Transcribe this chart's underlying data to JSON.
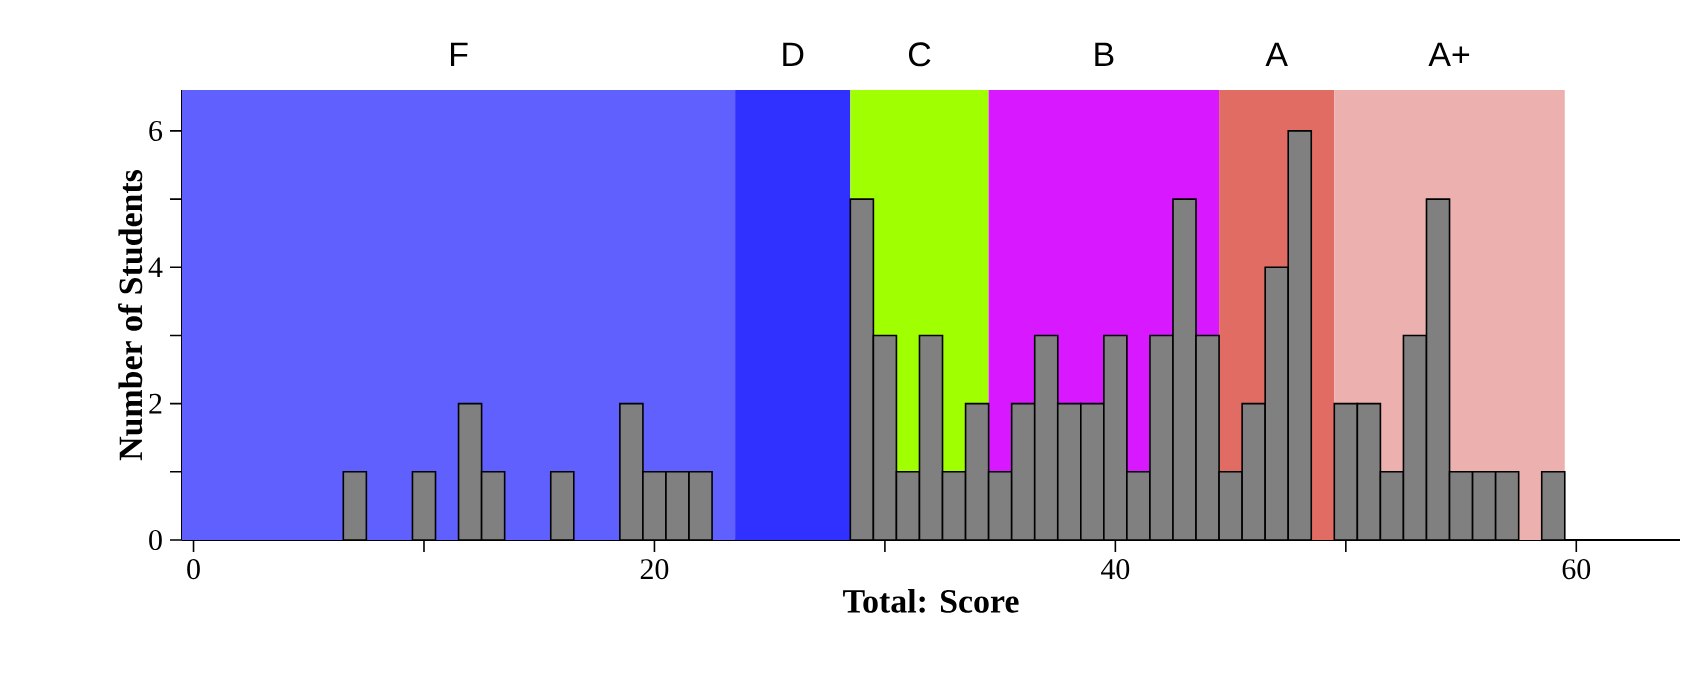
{
  "chart_data": {
    "type": "histogram",
    "xlabel": "Total: Score",
    "ylabel": "Number of Students",
    "color": "#808080",
    "bins": [
      -0.5,
      0.5,
      1.5,
      2.5,
      3.5,
      4.5,
      5.5,
      6.5,
      7.5,
      8.5,
      9.5,
      10.5,
      11.5,
      12.5,
      13.5,
      14.5,
      15.5,
      16.5,
      17.5,
      18.5,
      19.5,
      20.5,
      21.5,
      22.5,
      23.5,
      24.5,
      25.5,
      26.5,
      27.5,
      28.5,
      29.5,
      30.5,
      31.5,
      32.5,
      33.5,
      34.5,
      35.5,
      36.5,
      37.5,
      38.5,
      39.5,
      40.5,
      41.5,
      42.5,
      43.5,
      44.5,
      45.5,
      46.5,
      47.5,
      48.5,
      49.5,
      50.5,
      51.5,
      52.5,
      53.5,
      54.5,
      55.5,
      56.5,
      57.5,
      58.5,
      59.5
    ],
    "values": [
      0,
      0,
      0,
      0,
      0,
      0,
      0,
      1,
      0,
      0,
      1,
      0,
      2,
      1,
      0,
      0,
      1,
      0,
      0,
      2,
      1,
      1,
      1,
      0,
      0,
      0,
      0,
      0,
      0,
      5,
      3,
      1,
      3,
      1,
      2,
      1,
      2,
      3,
      2,
      2,
      3,
      1,
      3,
      5,
      3,
      1,
      2,
      4,
      6,
      0,
      2,
      2,
      1,
      3,
      5,
      1,
      1,
      1,
      0,
      1
    ],
    "xlim": [
      -0.5,
      64.5
    ],
    "ylim": [
      0,
      6.6
    ],
    "xticks": [
      0,
      {
        "value": 10,
        "label": null
      },
      20,
      {
        "value": 30,
        "label": null
      },
      40,
      {
        "value": 50,
        "label": null
      },
      60
    ],
    "yticks": [
      0,
      {
        "value": 1,
        "label": null
      },
      2,
      {
        "value": 3,
        "label": null
      },
      4,
      {
        "value": 5,
        "label": null
      },
      6
    ],
    "bands": [
      {
        "axis": "x",
        "from": -0.5,
        "to": 23.5,
        "label": "F",
        "color": "#6060ff"
      },
      {
        "axis": "x",
        "from": 23.5,
        "to": 28.5,
        "label": "D",
        "color": "#3030ff"
      },
      {
        "axis": "x",
        "from": 28.5,
        "to": 34.5,
        "label": "C",
        "color": "#a0ff00"
      },
      {
        "axis": "x",
        "from": 34.5,
        "to": 44.5,
        "label": "B",
        "color": "#d818ff"
      },
      {
        "axis": "x",
        "from": 44.5,
        "to": 49.5,
        "label": "A",
        "color": "#e06c64"
      },
      {
        "axis": "x",
        "from": 49.5,
        "to": 59.5,
        "label": "A+",
        "color": "#ecb0ae"
      }
    ]
  }
}
